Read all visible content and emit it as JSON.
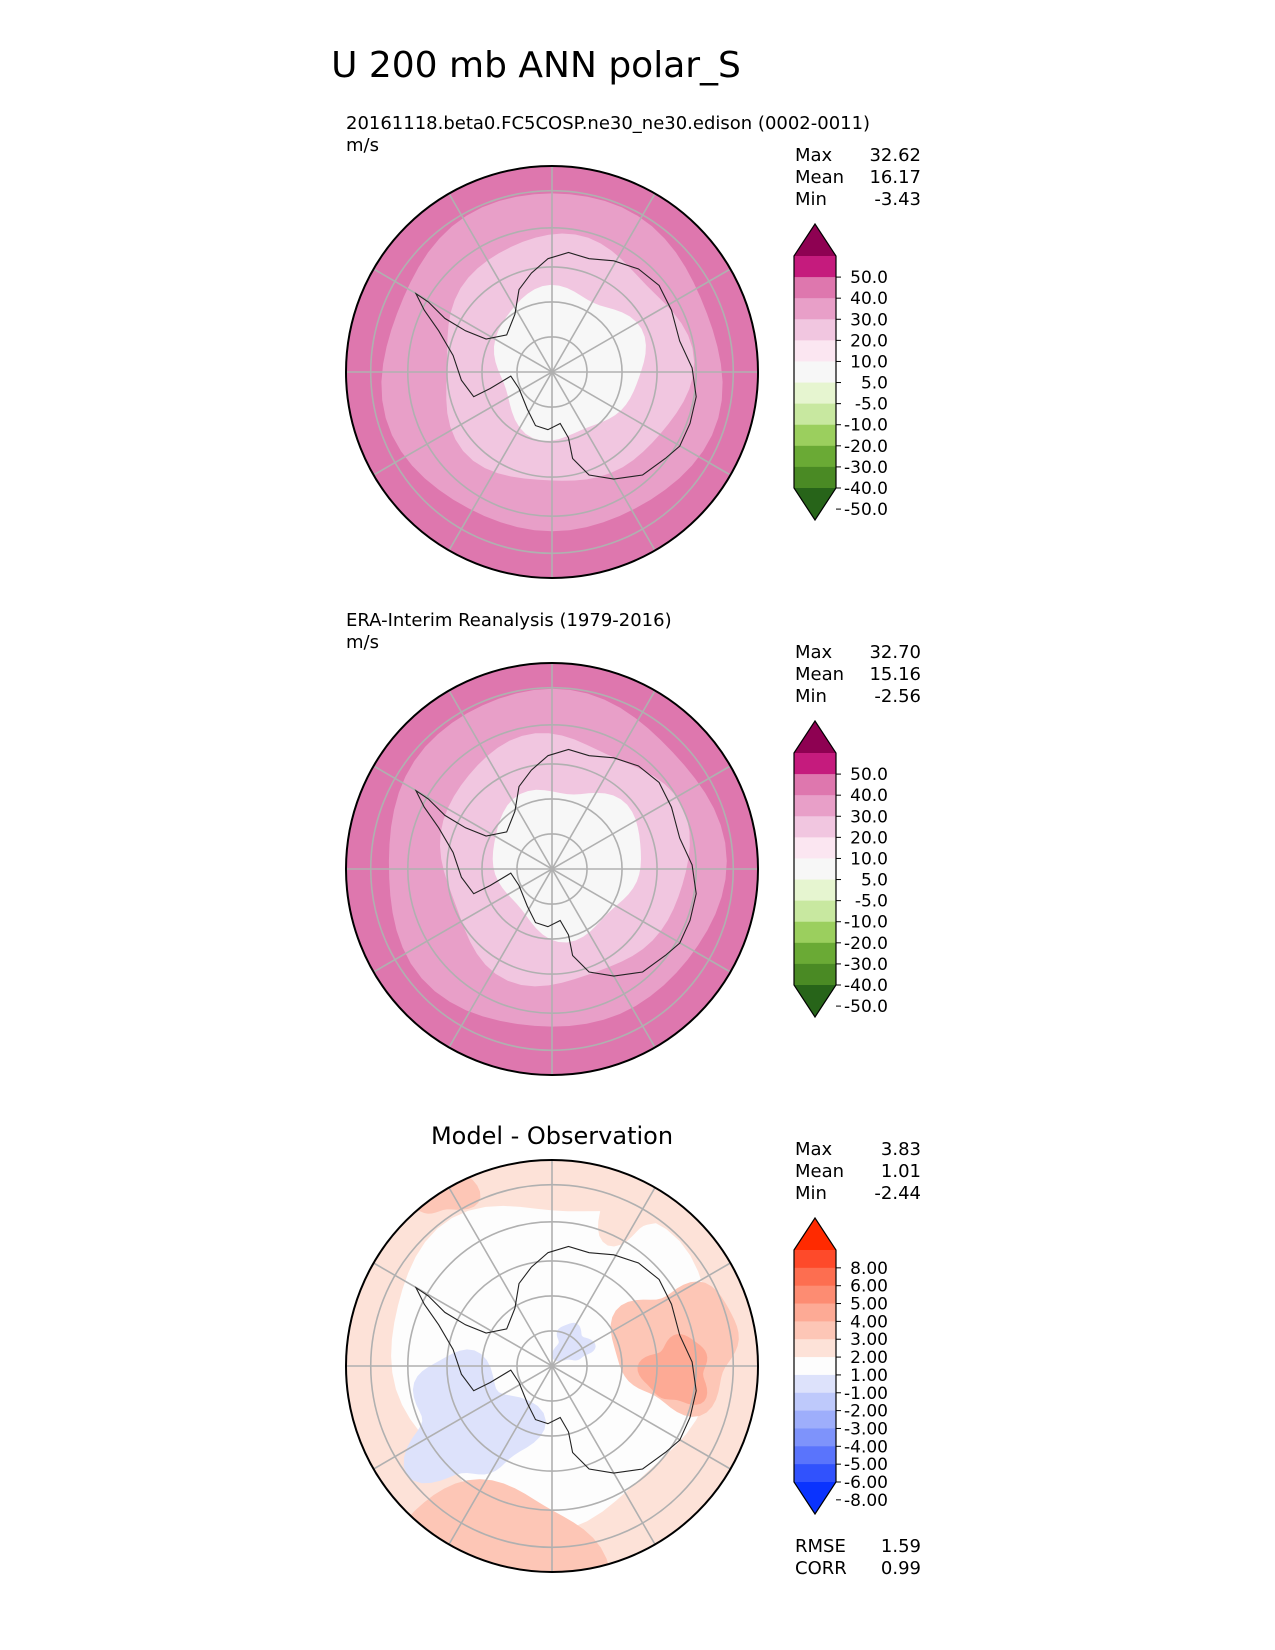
{
  "figure": {
    "title": "U 200 mb ANN polar_S"
  },
  "chart_data": [
    {
      "type": "heatmap",
      "projection": "south-polar-stereographic",
      "title": "20161118.beta0.FC5COSP.ne30_ne30.edison (0002-0011)",
      "units": "m/s",
      "stats": [
        {
          "label": "Max",
          "value": "32.62"
        },
        {
          "label": "Mean",
          "value": "16.17"
        },
        {
          "label": "Min",
          "value": "-3.43"
        }
      ],
      "colorbar": {
        "ticks": [
          "50.0",
          "40.0",
          "30.0",
          "20.0",
          "10.0",
          "5.0",
          "-5.0",
          "-10.0",
          "-20.0",
          "-30.0",
          "-40.0",
          "-50.0"
        ],
        "colors": [
          "#8e0152",
          "#c51b7d",
          "#de77ae",
          "#e89fc8",
          "#f1c6e0",
          "#fbe6f1",
          "#f7f7f7",
          "#e6f5d0",
          "#c8e8a0",
          "#9bcf5e",
          "#6aaa35",
          "#4a8a24",
          "#276419"
        ]
      },
      "field_levels": {
        "outer": 30,
        "mid": 20,
        "inner": 10,
        "core": 0
      }
    },
    {
      "type": "heatmap",
      "projection": "south-polar-stereographic",
      "title": "ERA-Interim Reanalysis (1979-2016)",
      "units": "m/s",
      "stats": [
        {
          "label": "Max",
          "value": "32.70"
        },
        {
          "label": "Mean",
          "value": "15.16"
        },
        {
          "label": "Min",
          "value": "-2.56"
        }
      ],
      "colorbar": {
        "ticks": [
          "50.0",
          "40.0",
          "30.0",
          "20.0",
          "10.0",
          "5.0",
          "-5.0",
          "-10.0",
          "-20.0",
          "-30.0",
          "-40.0",
          "-50.0"
        ],
        "colors": [
          "#8e0152",
          "#c51b7d",
          "#de77ae",
          "#e89fc8",
          "#f1c6e0",
          "#fbe6f1",
          "#f7f7f7",
          "#e6f5d0",
          "#c8e8a0",
          "#9bcf5e",
          "#6aaa35",
          "#4a8a24",
          "#276419"
        ]
      },
      "field_levels": {
        "outer": 30,
        "mid": 20,
        "inner": 10,
        "core": 0
      }
    },
    {
      "type": "heatmap",
      "projection": "south-polar-stereographic",
      "title": "Model - Observation",
      "stats": [
        {
          "label": "Max",
          "value": "3.83"
        },
        {
          "label": "Mean",
          "value": "1.01"
        },
        {
          "label": "Min",
          "value": "-2.44"
        }
      ],
      "colorbar": {
        "ticks": [
          "8.00",
          "6.00",
          "5.00",
          "4.00",
          "3.00",
          "2.00",
          "1.00",
          "-1.00",
          "-2.00",
          "-3.00",
          "-4.00",
          "-5.00",
          "-6.00",
          "-8.00"
        ],
        "colors": [
          "#ff2a00",
          "#fe4a2a",
          "#fd6e50",
          "#fd8c72",
          "#fdaa95",
          "#fdc6b6",
          "#fde2d8",
          "#fdfdfd",
          "#dde2fb",
          "#bec9fb",
          "#9eaefb",
          "#7e93fb",
          "#5a74fc",
          "#3152fd",
          "#0a33fe"
        ]
      },
      "metrics": [
        {
          "label": "RMSE",
          "value": "1.59"
        },
        {
          "label": "CORR",
          "value": "0.99"
        }
      ]
    }
  ]
}
